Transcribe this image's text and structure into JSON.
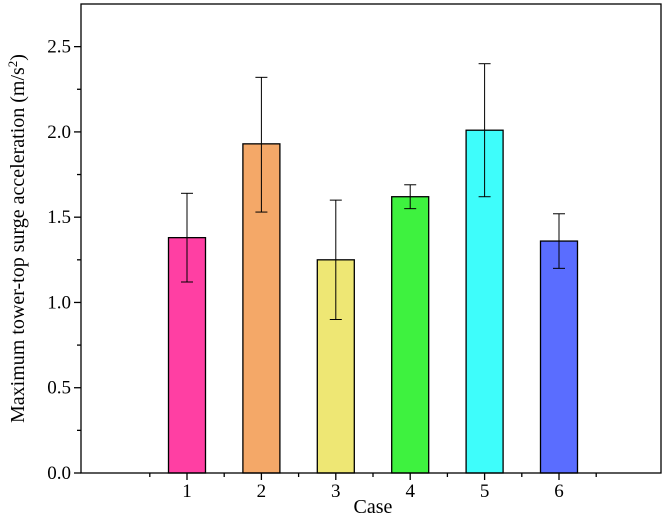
{
  "chart_data": {
    "type": "bar",
    "categories": [
      "1",
      "2",
      "3",
      "4",
      "5",
      "6"
    ],
    "values": [
      1.38,
      1.93,
      1.25,
      1.62,
      2.01,
      1.36
    ],
    "error_low": [
      1.12,
      1.53,
      0.9,
      1.55,
      1.62,
      1.2
    ],
    "error_high": [
      1.64,
      2.32,
      1.6,
      1.69,
      2.4,
      1.52
    ],
    "colors": [
      "#ff3fa3",
      "#f4a868",
      "#eee774",
      "#3ef23f",
      "#3efdfb",
      "#5a6dff"
    ],
    "xlabel": "Case",
    "ylabel_prefix": "Maximum tower-top surge acceleration (m/s",
    "ylabel_sup": "2",
    "ylabel_suffix": ")",
    "ylim": [
      0,
      2.75
    ],
    "yticks": [
      "0.0",
      "0.5",
      "1.0",
      "1.5",
      "2.0",
      "2.5"
    ],
    "grid": false,
    "legend": "none"
  }
}
